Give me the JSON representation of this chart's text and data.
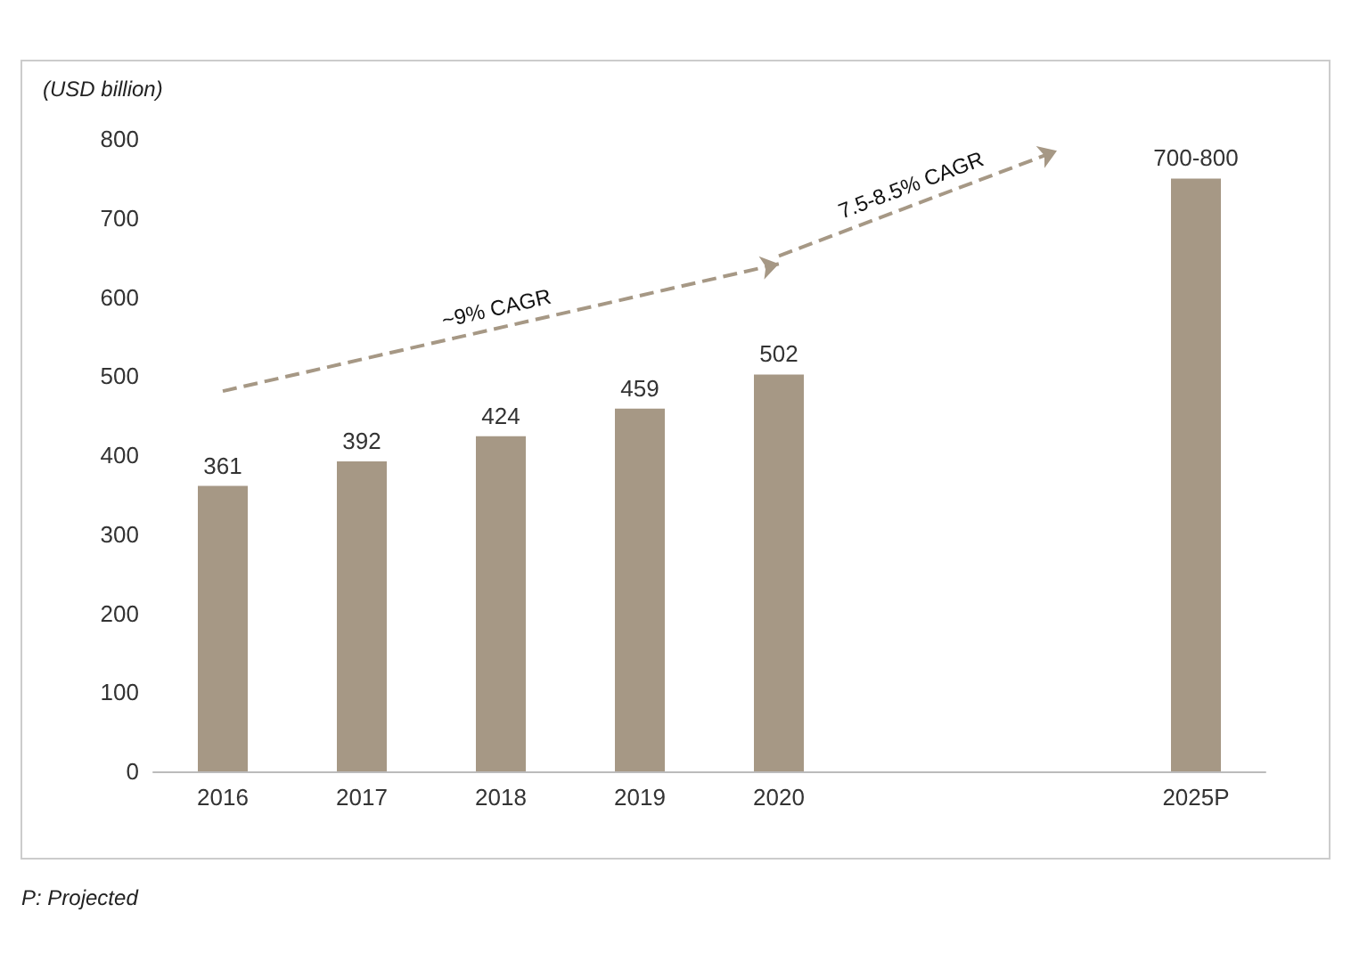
{
  "chart_data": {
    "type": "bar",
    "ylabel": "(USD billion)",
    "categories": [
      "2016",
      "2017",
      "2018",
      "2019",
      "2020",
      null,
      null,
      "2025P"
    ],
    "values": [
      361,
      392,
      424,
      459,
      502,
      null,
      null,
      750
    ],
    "value_labels": [
      "361",
      "392",
      "424",
      "459",
      "502",
      null,
      null,
      "700-800"
    ],
    "color": "#a69885",
    "ylim": [
      0,
      800
    ],
    "yticks": [
      0,
      100,
      200,
      300,
      400,
      500,
      600,
      700,
      800
    ],
    "grid": false,
    "annotations": [
      "~9% CAGR",
      "7.5-8.5% CAGR",
      "P: Projected"
    ]
  }
}
